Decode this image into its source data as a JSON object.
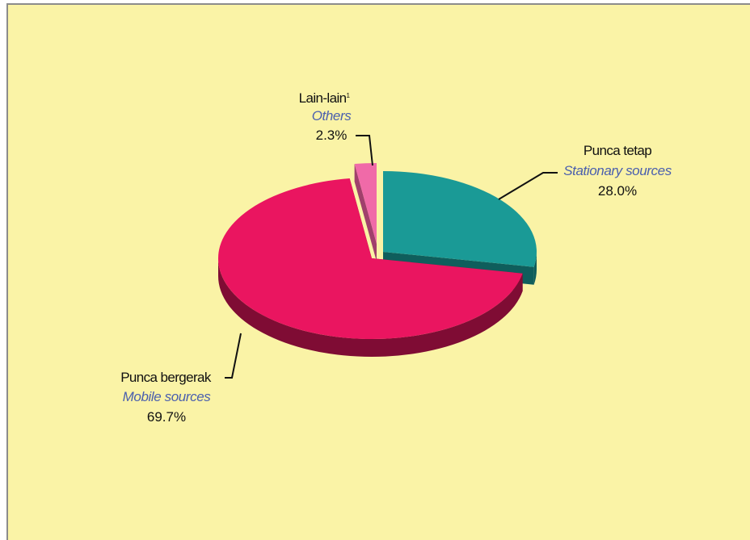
{
  "chart_data": {
    "type": "pie",
    "title": "",
    "slices": [
      {
        "label": "Punca tetap",
        "label_en": "Stationary sources",
        "value": 28.0,
        "value_label": "28.0%",
        "color": "#1a9a96",
        "side_color": "#0f5e5c"
      },
      {
        "label": "Punca bergerak",
        "label_en": "Mobile sources",
        "value": 69.7,
        "value_label": "69.7%",
        "color": "#ea1560",
        "side_color": "#7f0c34"
      },
      {
        "label": "Lain-lain",
        "label_sup": "1",
        "label_en": "Others",
        "value": 2.3,
        "value_label": "2.3%",
        "color": "#f06aa8",
        "side_color": "#a0406c"
      }
    ]
  },
  "colors": {
    "background": "#faf3a6",
    "border": "#8c8c8c",
    "label_english": "#4a5fae"
  }
}
